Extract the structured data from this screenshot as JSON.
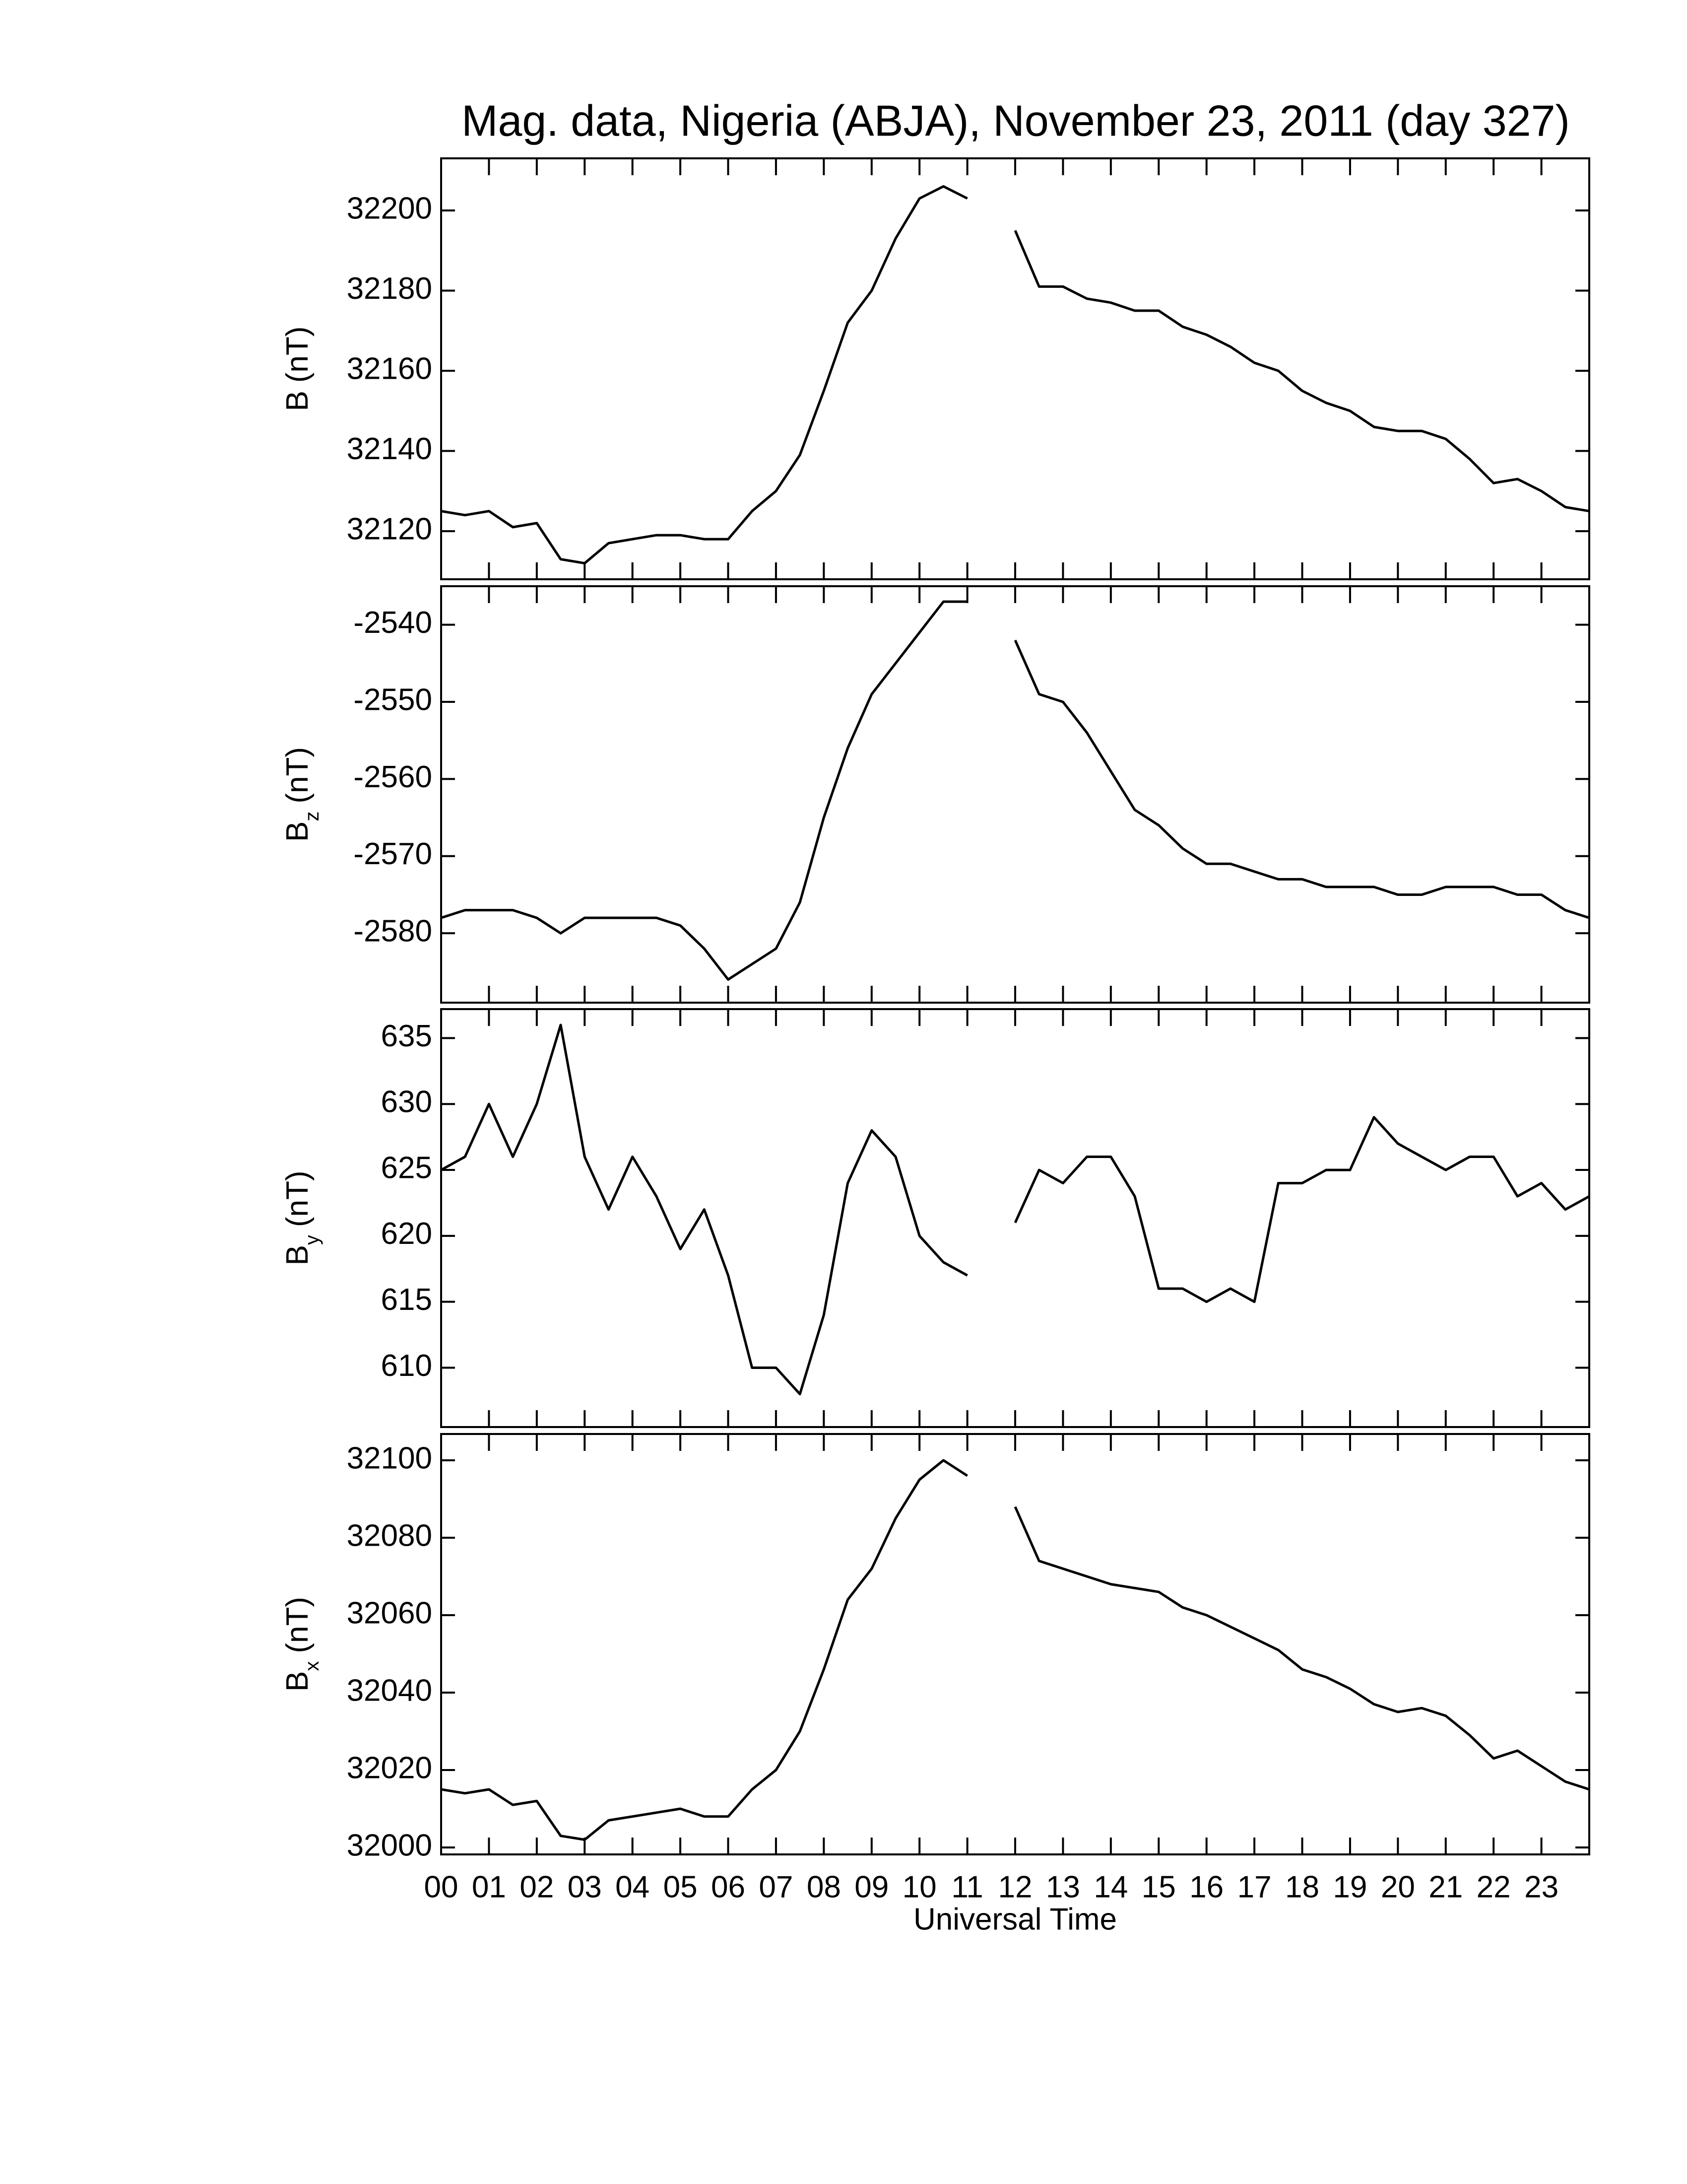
{
  "chart_data": [
    {
      "type": "line",
      "title": "Mag. data, Nigeria (ABJA), November 23, 2011 (day 327)",
      "ylabel": {
        "symbol": "B",
        "unit": "(nT)"
      },
      "color": "#000000",
      "xlim": [
        0,
        24
      ],
      "ylim": [
        32108,
        32213
      ],
      "yticks": [
        32120,
        32140,
        32160,
        32180,
        32200
      ],
      "x": [
        0,
        0.5,
        1,
        1.5,
        2,
        2.5,
        3,
        3.5,
        4,
        4.5,
        5,
        5.5,
        6,
        6.5,
        7,
        7.5,
        8,
        8.5,
        9,
        9.5,
        10,
        10.5,
        11,
        11.5,
        12,
        12.5,
        13,
        13.5,
        14,
        14.5,
        15,
        15.5,
        16,
        16.5,
        17,
        17.5,
        18,
        18.5,
        19,
        19.5,
        20,
        20.5,
        21,
        21.5,
        22,
        22.5,
        23,
        23.5,
        24
      ],
      "values": [
        32125,
        32124,
        32125,
        32121,
        32122,
        32113,
        32112,
        32117,
        32118,
        32119,
        32119,
        32118,
        32118,
        32125,
        32130,
        32139,
        32155,
        32172,
        32180,
        32193,
        32203,
        32206,
        32203,
        null,
        32195,
        32181,
        32181,
        32178,
        32177,
        32175,
        32175,
        32171,
        32169,
        32166,
        32162,
        32160,
        32155,
        32152,
        32150,
        32146,
        32145,
        32145,
        32143,
        32138,
        32132,
        32133,
        32130,
        32126,
        32125
      ]
    },
    {
      "type": "line",
      "ylabel": {
        "symbol": "B",
        "subscript": "z",
        "unit": "(nT)"
      },
      "color": "#000000",
      "xlim": [
        0,
        24
      ],
      "ylim": [
        -2589,
        -2535
      ],
      "yticks": [
        -2580,
        -2570,
        -2560,
        -2550,
        -2540
      ],
      "x": [
        0,
        0.5,
        1,
        1.5,
        2,
        2.5,
        3,
        3.5,
        4,
        4.5,
        5,
        5.5,
        6,
        6.5,
        7,
        7.5,
        8,
        8.5,
        9,
        9.5,
        10,
        10.5,
        11,
        11.5,
        12,
        12.5,
        13,
        13.5,
        14,
        14.5,
        15,
        15.5,
        16,
        16.5,
        17,
        17.5,
        18,
        18.5,
        19,
        19.5,
        20,
        20.5,
        21,
        21.5,
        22,
        22.5,
        23,
        23.5,
        24
      ],
      "values": [
        -2578,
        -2577,
        -2577,
        -2577,
        -2578,
        -2580,
        -2578,
        -2578,
        -2578,
        -2578,
        -2579,
        -2582,
        -2586,
        -2584,
        -2582,
        -2576,
        -2565,
        -2556,
        -2549,
        -2545,
        -2541,
        -2537,
        -2537,
        null,
        -2542,
        -2549,
        -2550,
        -2554,
        -2559,
        -2564,
        -2566,
        -2569,
        -2571,
        -2571,
        -2572,
        -2573,
        -2573,
        -2574,
        -2574,
        -2574,
        -2575,
        -2575,
        -2574,
        -2574,
        -2574,
        -2575,
        -2575,
        -2577,
        -2578
      ]
    },
    {
      "type": "line",
      "ylabel": {
        "symbol": "B",
        "subscript": "y",
        "unit": "(nT)"
      },
      "color": "#000000",
      "xlim": [
        0,
        24
      ],
      "ylim": [
        605.5,
        637.2
      ],
      "yticks": [
        610,
        615,
        620,
        625,
        630,
        635
      ],
      "x": [
        0,
        0.5,
        1,
        1.5,
        2,
        2.5,
        3,
        3.5,
        4,
        4.5,
        5,
        5.5,
        6,
        6.5,
        7,
        7.5,
        8,
        8.5,
        9,
        9.5,
        10,
        10.5,
        11,
        11.5,
        12,
        12.5,
        13,
        13.5,
        14,
        14.5,
        15,
        15.5,
        16,
        16.5,
        17,
        17.5,
        18,
        18.5,
        19,
        19.5,
        20,
        20.5,
        21,
        21.5,
        22,
        22.5,
        23,
        23.5,
        24
      ],
      "values": [
        625,
        626,
        630,
        626,
        630,
        636,
        626,
        622,
        626,
        623,
        619,
        622,
        617,
        610,
        610,
        608,
        614,
        624,
        628,
        626,
        620,
        618,
        617,
        null,
        621,
        625,
        624,
        626,
        626,
        623,
        616,
        616,
        615,
        616,
        615,
        624,
        624,
        625,
        625,
        629,
        627,
        626,
        625,
        626,
        626,
        623,
        624,
        622,
        623
      ]
    },
    {
      "type": "line",
      "ylabel": {
        "symbol": "B",
        "subscript": "x",
        "unit": "(nT)"
      },
      "color": "#000000",
      "xlabel": "Universal Time",
      "xlim": [
        0,
        24
      ],
      "ylim": [
        31998.2,
        32106.8
      ],
      "yticks": [
        32000,
        32020,
        32040,
        32060,
        32080,
        32100
      ],
      "xticks": [
        {
          "value": 0,
          "label": "00"
        },
        {
          "value": 1,
          "label": "01"
        },
        {
          "value": 2,
          "label": "02"
        },
        {
          "value": 3,
          "label": "03"
        },
        {
          "value": 4,
          "label": "04"
        },
        {
          "value": 5,
          "label": "05"
        },
        {
          "value": 6,
          "label": "06"
        },
        {
          "value": 7,
          "label": "07"
        },
        {
          "value": 8,
          "label": "08"
        },
        {
          "value": 9,
          "label": "09"
        },
        10,
        11,
        12,
        13,
        14,
        15,
        16,
        17,
        18,
        19,
        20,
        21,
        22,
        23
      ],
      "x": [
        0,
        0.5,
        1,
        1.5,
        2,
        2.5,
        3,
        3.5,
        4,
        4.5,
        5,
        5.5,
        6,
        6.5,
        7,
        7.5,
        8,
        8.5,
        9,
        9.5,
        10,
        10.5,
        11,
        11.5,
        12,
        12.5,
        13,
        13.5,
        14,
        14.5,
        15,
        15.5,
        16,
        16.5,
        17,
        17.5,
        18,
        18.5,
        19,
        19.5,
        20,
        20.5,
        21,
        21.5,
        22,
        22.5,
        23,
        23.5,
        24
      ],
      "values": [
        32015,
        32014,
        32015,
        32011,
        32012,
        32003,
        32002,
        32007,
        32008,
        32009,
        32010,
        32008,
        32008,
        32015,
        32020,
        32030,
        32046,
        32064,
        32072,
        32085,
        32095,
        32100,
        32096,
        null,
        32088,
        32074,
        32072,
        32070,
        32068,
        32067,
        32066,
        32062,
        32060,
        32057,
        32054,
        32051,
        32046,
        32044,
        32041,
        32037,
        32035,
        32036,
        32034,
        32029,
        32023,
        32025,
        32021,
        32017,
        32015
      ]
    }
  ]
}
